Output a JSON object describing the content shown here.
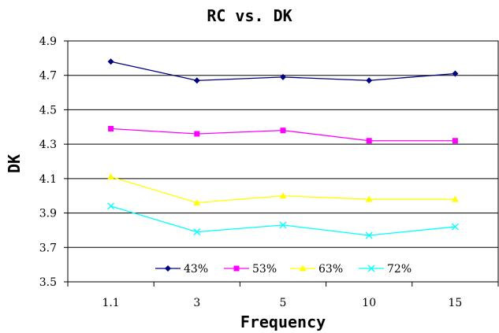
{
  "chart_data": {
    "type": "line",
    "title": "RC vs. DK",
    "xlabel": "Frequency",
    "ylabel": "DK",
    "categories": [
      "1.1",
      "3",
      "5",
      "10",
      "15"
    ],
    "ylim": [
      3.5,
      4.9
    ],
    "yticks": [
      "3.5",
      "3.7",
      "3.9",
      "4.1",
      "4.3",
      "4.5",
      "4.7",
      "4.9"
    ],
    "grid": true,
    "legend_position": "bottom-inside",
    "series": [
      {
        "name": "43%",
        "color": "#000080",
        "marker": "diamond",
        "values": [
          4.78,
          4.67,
          4.69,
          4.67,
          4.71
        ]
      },
      {
        "name": "53%",
        "color": "#ff00ff",
        "marker": "square",
        "values": [
          4.39,
          4.36,
          4.38,
          4.32,
          4.32
        ]
      },
      {
        "name": "63%",
        "color": "#ffff00",
        "marker": "triangle",
        "values": [
          4.11,
          3.96,
          4.0,
          3.98,
          3.98
        ]
      },
      {
        "name": "72%",
        "color": "#00ffff",
        "marker": "x",
        "values": [
          3.94,
          3.79,
          3.83,
          3.77,
          3.82
        ]
      }
    ]
  }
}
